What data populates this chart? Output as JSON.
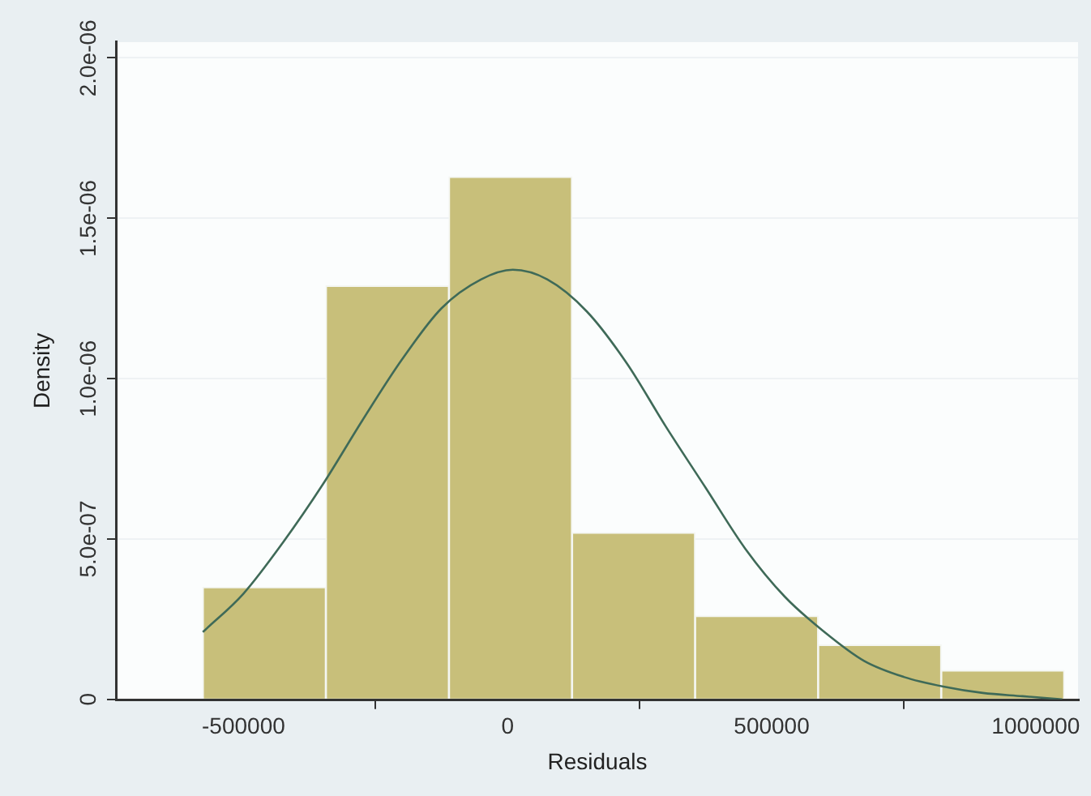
{
  "chart_data": {
    "type": "histogram",
    "xlabel": "Residuals",
    "ylabel": "Density",
    "bins": [
      -577000,
      -344000,
      -111000,
      122000,
      355000,
      588000,
      821000,
      1054000
    ],
    "series": [
      {
        "color": "#c8bf7a",
        "values": [
          3.5e-07,
          1.29e-06,
          1.63e-06,
          5.2e-07,
          2.6e-07,
          1.7e-07,
          9e-08
        ]
      },
      {
        "type": "line",
        "color": "#3f6a58",
        "x": [
          -577000,
          -500000,
          -425000,
          -350000,
          -275000,
          -200000,
          -125000,
          -50000,
          10000,
          75000,
          150000,
          225000,
          300000,
          375000,
          450000,
          525000,
          600000,
          675000,
          750000,
          825000,
          900000,
          975000,
          1050000
        ],
        "values": [
          2.1e-07,
          3.3e-07,
          4.9e-07,
          6.7e-07,
          8.7e-07,
          1.06e-06,
          1.22e-06,
          1.31e-06,
          1.34e-06,
          1.31e-06,
          1.21e-06,
          1.05e-06,
          8.5e-07,
          6.6e-07,
          4.7e-07,
          3.2e-07,
          2.1e-07,
          1.2e-07,
          7e-08,
          4e-08,
          2e-08,
          1e-08,
          0
        ]
      }
    ],
    "xlim": [
      -740000,
      1080000
    ],
    "xticks": [
      -500000,
      0,
      500000,
      1000000
    ],
    "ylim": [
      0,
      2.05e-06
    ],
    "yticks": [
      0,
      {
        "value": 5e-07,
        "label": "5.0e-07"
      },
      {
        "value": 1e-06,
        "label": "1.0e-06"
      },
      {
        "value": 1.5e-06,
        "label": "1.5e-06"
      },
      {
        "value": 2e-06,
        "label": "2.0e-06"
      }
    ],
    "grid": "y"
  }
}
